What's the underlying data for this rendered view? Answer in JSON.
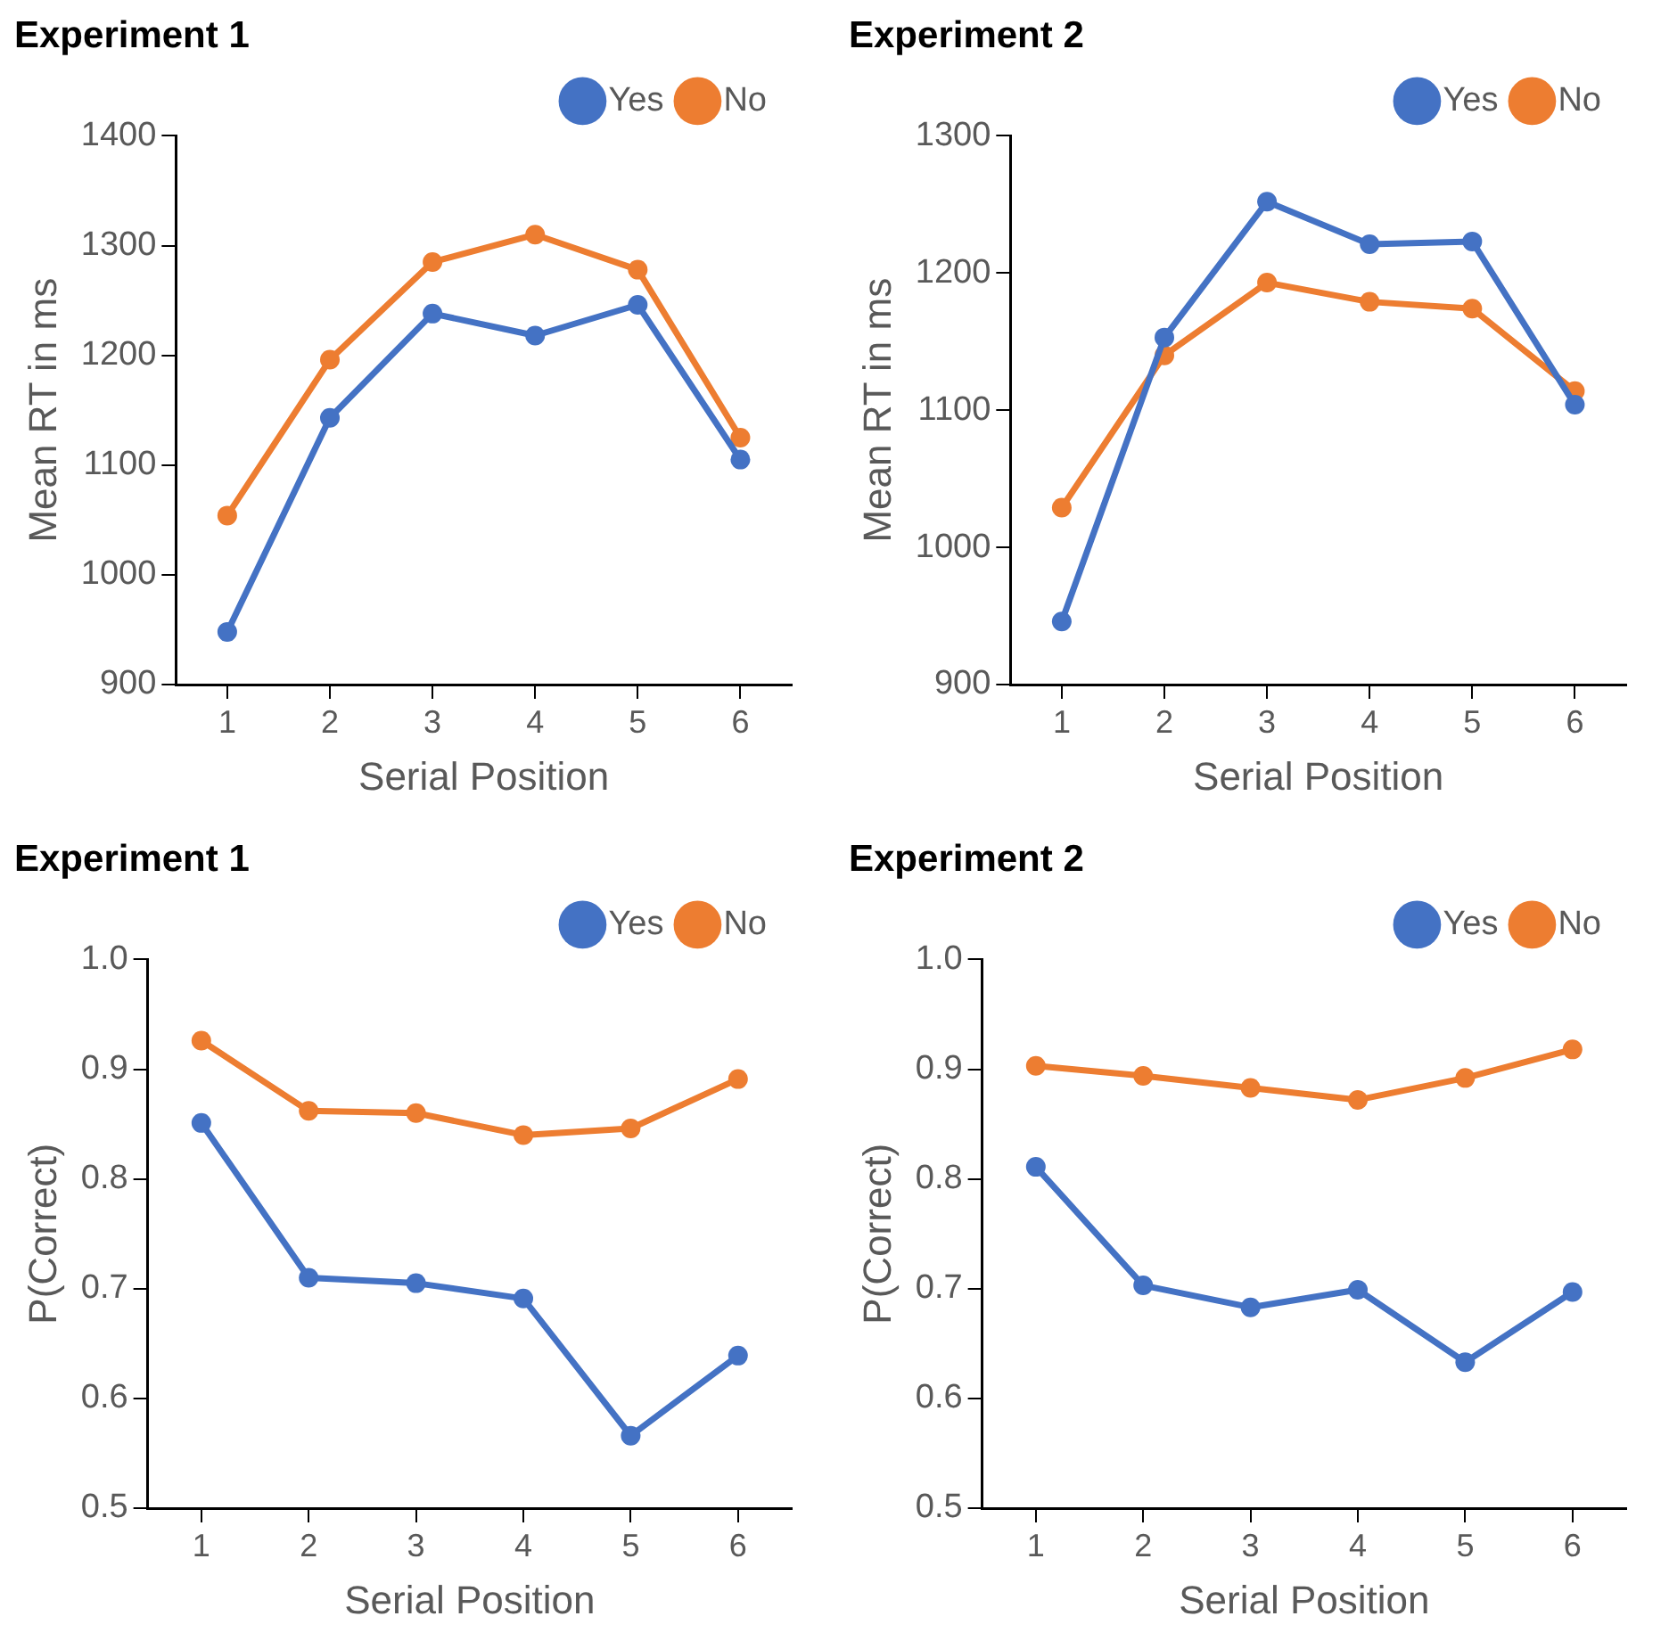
{
  "chart_data": [
    {
      "type": "line",
      "title": "Experiment 1",
      "xlabel": "Serial Position",
      "ylabel": "Mean RT in ms",
      "categories": [
        "1",
        "2",
        "3",
        "4",
        "5",
        "6"
      ],
      "series": [
        {
          "name": "Yes",
          "color": "#4472c4",
          "values": [
            948,
            1143,
            1238,
            1218,
            1246,
            1105
          ]
        },
        {
          "name": "No",
          "color": "#ed7d31",
          "values": [
            1054,
            1196,
            1285,
            1310,
            1278,
            1125
          ]
        }
      ],
      "ylim": [
        900,
        1400
      ],
      "yticks": [
        900,
        1000,
        1100,
        1200,
        1300,
        1400
      ],
      "grid": false,
      "legend": "top right",
      "marker": "circle"
    },
    {
      "type": "line",
      "title": "Experiment 2",
      "xlabel": "Serial Position",
      "ylabel": "Mean RT in ms",
      "categories": [
        "1",
        "2",
        "3",
        "4",
        "5",
        "6"
      ],
      "series": [
        {
          "name": "Yes",
          "color": "#4472c4",
          "values": [
            946,
            1153,
            1252,
            1221,
            1223,
            1104
          ]
        },
        {
          "name": "No",
          "color": "#ed7d31",
          "values": [
            1029,
            1140,
            1193,
            1179,
            1174,
            1114
          ]
        }
      ],
      "ylim": [
        900,
        1300
      ],
      "yticks": [
        900,
        1000,
        1100,
        1200,
        1300
      ],
      "grid": false,
      "legend": "top right",
      "marker": "circle"
    },
    {
      "type": "line",
      "title": "Experiment 1",
      "xlabel": "Serial Position",
      "ylabel": "P(Correct)",
      "categories": [
        "1",
        "2",
        "3",
        "4",
        "5",
        "6"
      ],
      "series": [
        {
          "name": "Yes",
          "color": "#4472c4",
          "values": [
            0.851,
            0.71,
            0.705,
            0.691,
            0.566,
            0.639
          ]
        },
        {
          "name": "No",
          "color": "#ed7d31",
          "values": [
            0.926,
            0.862,
            0.86,
            0.84,
            0.846,
            0.891
          ]
        }
      ],
      "ylim": [
        0.5,
        1.0
      ],
      "yticks": [
        {
          "value": 0.5,
          "label": "0.5"
        },
        {
          "value": 0.6,
          "label": "0.6"
        },
        {
          "value": 0.7,
          "label": "0.7"
        },
        {
          "value": 0.8,
          "label": "0.8"
        },
        {
          "value": 0.9,
          "label": "0.9"
        },
        {
          "value": 1.0,
          "label": "1.0"
        }
      ],
      "grid": false,
      "legend": "top right",
      "marker": "circle"
    },
    {
      "type": "line",
      "title": "Experiment 2",
      "xlabel": "Serial Position",
      "ylabel": "P(Correct)",
      "categories": [
        "1",
        "2",
        "3",
        "4",
        "5",
        "6"
      ],
      "series": [
        {
          "name": "Yes",
          "color": "#4472c4",
          "values": [
            0.811,
            0.703,
            0.683,
            0.699,
            0.633,
            0.697
          ]
        },
        {
          "name": "No",
          "color": "#ed7d31",
          "values": [
            0.903,
            0.894,
            0.883,
            0.872,
            0.892,
            0.918
          ]
        }
      ],
      "ylim": [
        0.5,
        1.0
      ],
      "yticks": [
        {
          "value": 0.5,
          "label": "0.5"
        },
        {
          "value": 0.6,
          "label": "0.6"
        },
        {
          "value": 0.7,
          "label": "0.7"
        },
        {
          "value": 0.8,
          "label": "0.8"
        },
        {
          "value": 0.9,
          "label": "0.9"
        },
        {
          "value": 1.0,
          "label": "1.0"
        }
      ],
      "grid": false,
      "legend": "top right",
      "marker": "circle"
    }
  ]
}
